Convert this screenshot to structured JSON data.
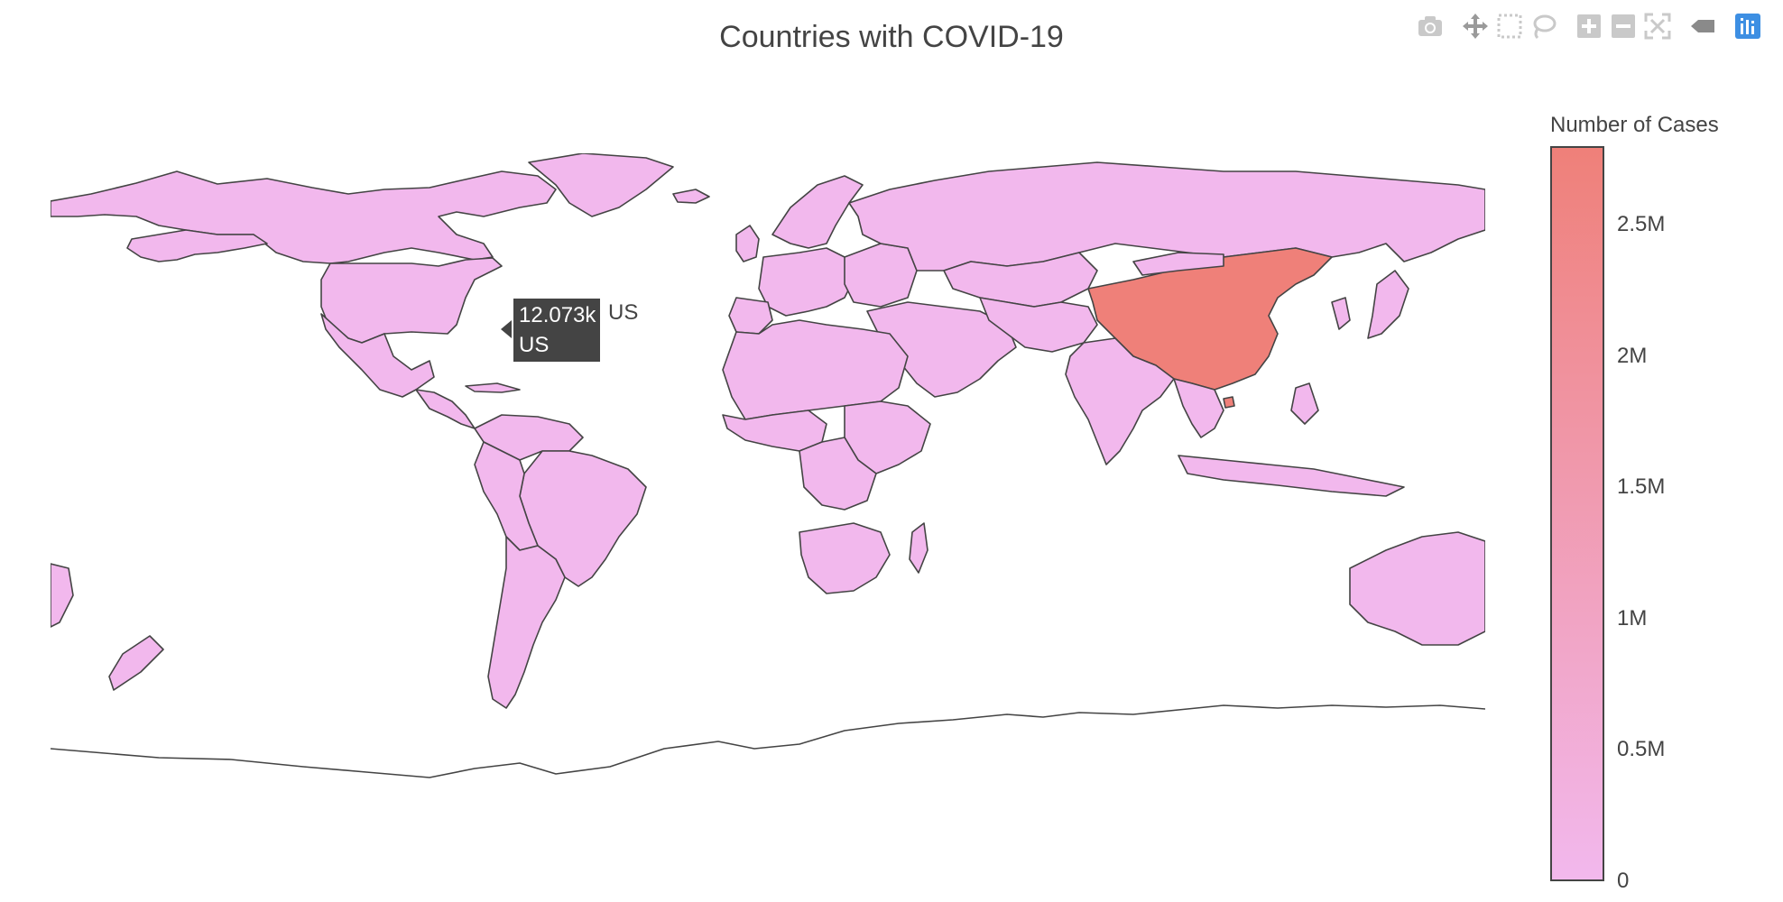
{
  "title": "Countries with COVID-19",
  "toolbar": {
    "buttons": [
      {
        "name": "camera-icon",
        "label": "Download plot as a png"
      },
      {
        "name": "pan-icon",
        "label": "Pan"
      },
      {
        "name": "box-select-icon",
        "label": "Box Select"
      },
      {
        "name": "lasso-select-icon",
        "label": "Lasso Select"
      },
      {
        "name": "zoom-in-icon",
        "label": "Zoom in"
      },
      {
        "name": "zoom-out-icon",
        "label": "Zoom out"
      },
      {
        "name": "reset-view-icon",
        "label": "Reset"
      },
      {
        "name": "hover-closest-icon",
        "label": "Show closest data on hover"
      },
      {
        "name": "plotly-logo-icon",
        "label": "Produced with Plotly"
      }
    ]
  },
  "colorbar": {
    "title": "Number of Cases",
    "ticks": [
      "0",
      "0.5M",
      "1M",
      "1.5M",
      "2M",
      "2.5M"
    ],
    "tick_values": [
      0,
      500000,
      1000000,
      1500000,
      2000000,
      2500000
    ],
    "range": [
      0,
      2800000
    ],
    "colorscale": [
      "#f2b8ed",
      "#ef8079"
    ]
  },
  "hover": {
    "value": "12.073k",
    "location": "US",
    "trace": "US"
  },
  "chart_data": {
    "type": "choropleth",
    "title": "Countries with COVID-19",
    "colorbar_title": "Number of Cases",
    "locations": [
      "US",
      "China"
    ],
    "values": [
      12073,
      2800000
    ],
    "zrange": [
      0,
      2800000
    ]
  },
  "colors": {
    "low": "#f2b8ed",
    "high": "#ef8079",
    "border": "#444444",
    "modebar_active": "#3d8fe3"
  }
}
